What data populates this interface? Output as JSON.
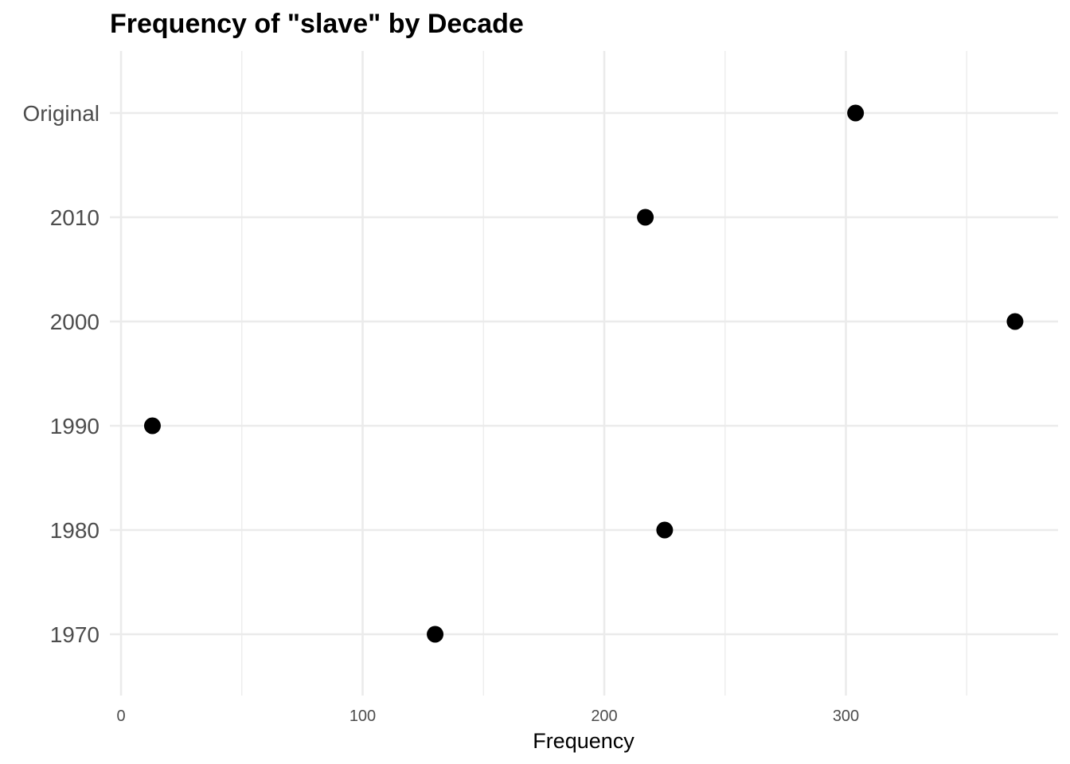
{
  "chart_data": {
    "type": "scatter",
    "title": "Frequency of \"slave\" by Decade",
    "xlabel": "Frequency",
    "ylabel": "",
    "categories": [
      "1970",
      "1980",
      "1990",
      "2000",
      "2010",
      "Original"
    ],
    "values": [
      130,
      225,
      13,
      370,
      217,
      304
    ],
    "xlim": [
      0,
      370
    ],
    "xticks": [
      0,
      100,
      200,
      300
    ],
    "xtick_labels": [
      "0",
      "100",
      "200",
      "300"
    ],
    "grid": true,
    "point_color": "#000000",
    "grid_color": "#ebebeb"
  }
}
